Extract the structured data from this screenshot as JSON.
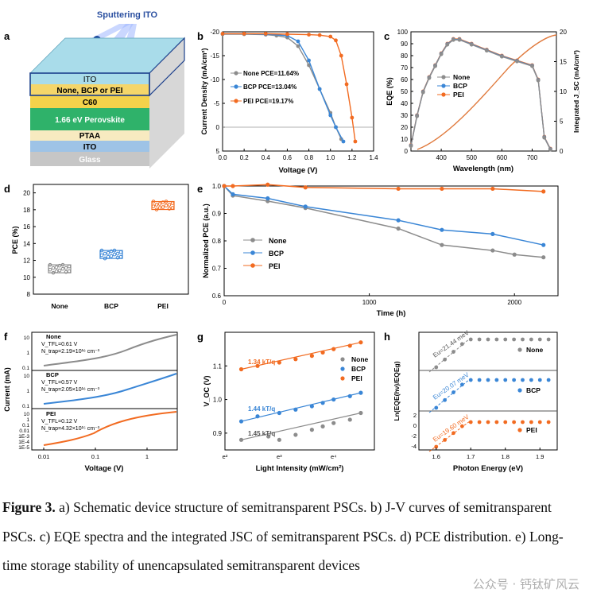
{
  "panels": {
    "a": "a",
    "b": "b",
    "c": "c",
    "d": "d",
    "e": "e",
    "f": "f",
    "g": "g",
    "h": "h"
  },
  "colors": {
    "none": "#8c8c8c",
    "bcp": "#3a86d6",
    "pei": "#f26b21"
  },
  "device": {
    "sputter_label": "Sputtering ITO",
    "layers": [
      "ITO",
      "None, BCP or PEI",
      "C60",
      "1.66 eV Perovskite",
      "PTAA",
      "ITO",
      "Glass"
    ]
  },
  "chart_data": [
    {
      "panel": "b",
      "type": "line",
      "xlabel": "Voltage (V)",
      "ylabel": "Current Density (mA/cm²)",
      "xlim": [
        0,
        1.4
      ],
      "ylim": [
        -20,
        5
      ],
      "xticks": [
        "0.0",
        "0.2",
        "0.4",
        "0.6",
        "0.8",
        "1.0",
        "1.2",
        "1.4"
      ],
      "yticks": [
        "-20",
        "-15",
        "-10",
        "-5",
        "0",
        "5"
      ],
      "series": [
        {
          "name": "None",
          "legend": "None PCE=11.64%",
          "x": [
            0,
            0.2,
            0.4,
            0.5,
            0.6,
            0.7,
            0.8,
            0.9,
            1.0,
            1.05,
            1.1
          ],
          "y": [
            -19.5,
            -19.5,
            -19.4,
            -19.2,
            -18.8,
            -17.0,
            -13.0,
            -8.0,
            -3.0,
            0,
            2.5
          ]
        },
        {
          "name": "BCP",
          "legend": "BCP  PCE=13.04%",
          "x": [
            0,
            0.2,
            0.4,
            0.6,
            0.7,
            0.8,
            0.9,
            1.0,
            1.05,
            1.12
          ],
          "y": [
            -19.6,
            -19.6,
            -19.5,
            -19.2,
            -18.0,
            -14.0,
            -8.0,
            -2.5,
            0,
            3
          ]
        },
        {
          "name": "PEI",
          "legend": "PEI   PCE=19.17%",
          "x": [
            0,
            0.2,
            0.4,
            0.6,
            0.8,
            0.9,
            1.0,
            1.05,
            1.1,
            1.15,
            1.2,
            1.23
          ],
          "y": [
            -19.6,
            -19.6,
            -19.6,
            -19.5,
            -19.4,
            -19.3,
            -19.0,
            -18.2,
            -15.0,
            -9.0,
            -2.0,
            3
          ]
        }
      ]
    },
    {
      "panel": "c",
      "type": "line",
      "xlabel": "Wavelength (nm)",
      "ylabel": "EQE (%)",
      "y2label": "Integrated J_SC (mA/cm²)",
      "xlim": [
        300,
        780
      ],
      "ylim": [
        0,
        100
      ],
      "y2lim": [
        0,
        20
      ],
      "xticks": [
        "400",
        "500",
        "600",
        "700"
      ],
      "yticks": [
        "0",
        "10",
        "20",
        "30",
        "40",
        "50",
        "60",
        "70",
        "80",
        "90",
        "100"
      ],
      "y2ticks": [
        "0",
        "5",
        "10",
        "15",
        "20"
      ],
      "series": [
        {
          "name": "None",
          "x": [
            300,
            320,
            340,
            360,
            380,
            400,
            420,
            440,
            460,
            500,
            550,
            600,
            650,
            700,
            720,
            740,
            760
          ],
          "y": [
            5,
            30,
            50,
            62,
            72,
            82,
            90,
            94,
            94,
            90,
            85,
            80,
            76,
            72,
            60,
            12,
            2
          ]
        },
        {
          "name": "BCP",
          "x": [
            300,
            320,
            340,
            360,
            380,
            400,
            420,
            440,
            460,
            500,
            550,
            600,
            650,
            700,
            720,
            740,
            760
          ],
          "y": [
            5,
            30,
            50,
            62,
            72,
            82,
            90,
            94,
            94,
            90,
            85,
            80,
            76,
            72,
            60,
            12,
            2
          ]
        },
        {
          "name": "PEI",
          "x": [
            300,
            320,
            340,
            360,
            380,
            400,
            420,
            440,
            460,
            500,
            550,
            600,
            650,
            700,
            720,
            740,
            760
          ],
          "y": [
            5,
            30,
            50,
            62,
            72,
            82,
            90,
            94,
            94,
            90,
            85,
            80,
            76,
            72,
            60,
            12,
            2
          ]
        }
      ]
    },
    {
      "panel": "d",
      "type": "scatter",
      "ylabel": "PCE (%)",
      "categories": [
        "None",
        "BCP",
        "PEI"
      ],
      "ylim": [
        8,
        21
      ],
      "yticks": [
        "8",
        "10",
        "12",
        "14",
        "16",
        "18",
        "20"
      ],
      "series": [
        {
          "name": "None",
          "values": [
            11.0
          ]
        },
        {
          "name": "BCP",
          "values": [
            12.7
          ]
        },
        {
          "name": "PEI",
          "values": [
            18.5
          ]
        }
      ]
    },
    {
      "panel": "e",
      "type": "line",
      "xlabel": "Time (h)",
      "ylabel": "Normalized PCE (a.u.)",
      "xlim": [
        0,
        2300
      ],
      "ylim": [
        0.6,
        1.0
      ],
      "xticks": [
        "0",
        "1000",
        "2000"
      ],
      "yticks": [
        "0.6",
        "0.7",
        "0.8",
        "0.9",
        "1.0"
      ],
      "series": [
        {
          "name": "None",
          "x": [
            0,
            60,
            300,
            560,
            1200,
            1500,
            1850,
            2000,
            2200
          ],
          "y": [
            1.0,
            0.965,
            0.945,
            0.92,
            0.845,
            0.785,
            0.765,
            0.75,
            0.74
          ]
        },
        {
          "name": "BCP",
          "x": [
            0,
            60,
            300,
            560,
            1200,
            1500,
            1850,
            2200
          ],
          "y": [
            1.0,
            0.97,
            0.955,
            0.925,
            0.875,
            0.84,
            0.825,
            0.785
          ]
        },
        {
          "name": "PEI",
          "x": [
            0,
            60,
            300,
            560,
            1200,
            1500,
            1850,
            2200
          ],
          "y": [
            1.0,
            1.0,
            1.005,
            0.995,
            0.99,
            0.99,
            0.99,
            0.98
          ]
        }
      ]
    },
    {
      "panel": "f",
      "type": "line",
      "xlabel": "Voltage (V)",
      "ylabel": "Current (mA)",
      "xticks": [
        "0.01",
        "0.1",
        "1"
      ],
      "subplots": [
        {
          "name": "None",
          "vtfl": "V_TFL=0.61 V",
          "ntrap": "N_trap=2.19×10¹⁶ cm⁻³",
          "yticks": [
            "10",
            "1",
            "0.1"
          ]
        },
        {
          "name": "BCP",
          "vtfl": "V_TFL=0.57 V",
          "ntrap": "N_trap=2.05×10¹⁶ cm⁻³",
          "yticks": [
            "10",
            "1",
            "0.1"
          ]
        },
        {
          "name": "PEI",
          "vtfl": "V_TFL=0.12 V",
          "ntrap": "N_trap=4.32×10¹⁵ cm⁻³",
          "yticks": [
            "10",
            "1",
            "0.1",
            "0.01",
            "1E-3",
            "1E-4",
            "1E-5"
          ]
        }
      ]
    },
    {
      "panel": "g",
      "type": "scatter",
      "xlabel": "Light Intensity (mW/cm²)",
      "ylabel": "V_OC (V)",
      "ylim": [
        0.85,
        1.2
      ],
      "xticks": [
        "e²",
        "e³",
        "e⁴"
      ],
      "yticks": [
        "0.9",
        "1.0",
        "1.1"
      ],
      "series": [
        {
          "name": "None",
          "slope": "1.45 kT/q",
          "x": [
            2.3,
            2.8,
            3.0,
            3.3,
            3.6,
            3.8,
            4.0,
            4.3,
            4.5
          ],
          "y": [
            0.88,
            0.89,
            0.88,
            0.895,
            0.91,
            0.92,
            0.93,
            0.94,
            0.96
          ]
        },
        {
          "name": "BCP",
          "slope": "1.44 kT/q",
          "x": [
            2.3,
            2.6,
            3.0,
            3.3,
            3.6,
            3.8,
            4.0,
            4.3,
            4.5
          ],
          "y": [
            0.935,
            0.95,
            0.96,
            0.97,
            0.98,
            0.99,
            1.0,
            1.01,
            1.02
          ]
        },
        {
          "name": "PEI",
          "slope": "1.34 kT/q",
          "x": [
            2.3,
            2.6,
            3.0,
            3.3,
            3.6,
            3.8,
            4.0,
            4.3,
            4.5
          ],
          "y": [
            1.09,
            1.1,
            1.11,
            1.12,
            1.13,
            1.14,
            1.15,
            1.16,
            1.17
          ]
        }
      ]
    },
    {
      "panel": "h",
      "type": "scatter",
      "xlabel": "Photon Energy (eV)",
      "ylabel": "Ln(EQE(hν)/EQEg)",
      "xlim": [
        1.55,
        1.95
      ],
      "xticks": [
        "1.6",
        "1.7",
        "1.8",
        "1.9"
      ],
      "yticks": [
        "2",
        "0",
        "-2",
        "-4"
      ],
      "series": [
        {
          "name": "None",
          "eu": "Eu=21.44 meV"
        },
        {
          "name": "BCP",
          "eu": "Eu=20.07 meV"
        },
        {
          "name": "PEI",
          "eu": "Eu=19.60 meV"
        }
      ]
    }
  ],
  "labels_f": {
    "none": "None",
    "bcp": "BCP",
    "pei": "PEI"
  },
  "caption": {
    "lead": "Figure 3.",
    "text": "a) Schematic device structure of semitransparent PSCs. b) J-V curves of semitransparent PSCs. c) EQE spectra and the integrated JSC of semitransparent PSCs. d) PCE distribution. e) Long-time storage stability of unencapsulated semitransparent devices"
  },
  "watermark": "公众号 · 钙钛矿风云"
}
